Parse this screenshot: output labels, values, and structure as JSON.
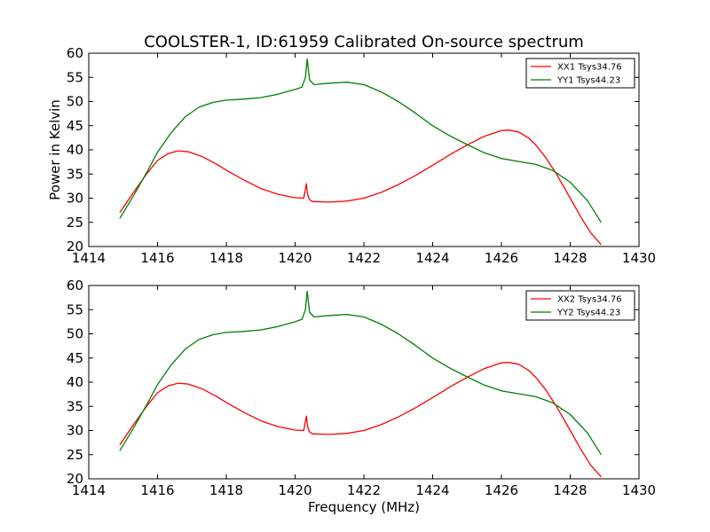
{
  "title": "COOLSTER-1, ID:61959 Calibrated On-source spectrum",
  "colors": {
    "xx": "#ff0000",
    "yy": "#008000"
  },
  "chart_data": [
    {
      "type": "line",
      "title": "COOLSTER-1, ID:61959 Calibrated On-source spectrum",
      "xlabel": "",
      "ylabel": "Power in Kelvin",
      "xlim": [
        1414,
        1430
      ],
      "ylim": [
        20,
        60
      ],
      "xticks": [
        1414,
        1416,
        1418,
        1420,
        1422,
        1424,
        1426,
        1428,
        1430
      ],
      "yticks": [
        20,
        25,
        30,
        35,
        40,
        45,
        50,
        55,
        60
      ],
      "legend_position": "top-right",
      "series": [
        {
          "name": "XX1 Tsys34.76",
          "color": "#ff0000",
          "x": [
            1414.9,
            1415.3,
            1415.7,
            1416.0,
            1416.3,
            1416.6,
            1416.9,
            1417.3,
            1417.7,
            1418.0,
            1418.5,
            1419.0,
            1419.5,
            1420.0,
            1420.25,
            1420.33,
            1420.36,
            1420.41,
            1420.5,
            1421.0,
            1421.5,
            1422.0,
            1422.5,
            1423.0,
            1423.5,
            1424.0,
            1424.5,
            1425.0,
            1425.5,
            1426.0,
            1426.2,
            1426.5,
            1426.8,
            1427.0,
            1427.3,
            1427.6,
            1428.0,
            1428.3,
            1428.6,
            1428.9
          ],
          "y": [
            27.0,
            31.2,
            35.2,
            37.8,
            39.2,
            39.8,
            39.6,
            38.6,
            37.1,
            35.8,
            33.8,
            32.0,
            30.8,
            30.1,
            30.0,
            33.0,
            31.0,
            29.8,
            29.3,
            29.2,
            29.4,
            30.0,
            31.2,
            32.8,
            34.7,
            36.8,
            39.0,
            41.0,
            42.8,
            44.0,
            44.1,
            43.7,
            42.4,
            41.0,
            38.3,
            35.0,
            30.0,
            26.2,
            22.8,
            20.4
          ]
        },
        {
          "name": "YY1 Tsys44.23",
          "color": "#008000",
          "x": [
            1414.9,
            1415.3,
            1415.7,
            1416.0,
            1416.4,
            1416.8,
            1417.2,
            1417.6,
            1418.0,
            1418.5,
            1419.0,
            1419.5,
            1420.0,
            1420.2,
            1420.3,
            1420.35,
            1420.42,
            1420.55,
            1421.0,
            1421.5,
            1422.0,
            1422.5,
            1423.0,
            1423.5,
            1424.0,
            1424.5,
            1425.0,
            1425.5,
            1426.0,
            1426.5,
            1427.0,
            1427.5,
            1428.0,
            1428.5,
            1428.9
          ],
          "y": [
            25.8,
            30.5,
            35.5,
            39.5,
            43.6,
            46.8,
            48.8,
            49.8,
            50.3,
            50.5,
            50.8,
            51.5,
            52.5,
            53.0,
            55.0,
            58.8,
            54.5,
            53.5,
            53.8,
            54.0,
            53.5,
            52.0,
            50.0,
            47.6,
            45.0,
            42.9,
            41.1,
            39.4,
            38.2,
            37.6,
            37.0,
            35.7,
            33.3,
            29.5,
            25.0
          ]
        }
      ]
    },
    {
      "type": "line",
      "title": "",
      "xlabel": "Frequency (MHz)",
      "ylabel": "",
      "xlim": [
        1414,
        1430
      ],
      "ylim": [
        20,
        60
      ],
      "xticks": [
        1414,
        1416,
        1418,
        1420,
        1422,
        1424,
        1426,
        1428,
        1430
      ],
      "yticks": [
        20,
        25,
        30,
        35,
        40,
        45,
        50,
        55,
        60
      ],
      "legend_position": "top-right",
      "series": [
        {
          "name": "XX2 Tsys34.76",
          "color": "#ff0000",
          "x": [
            1414.9,
            1415.3,
            1415.7,
            1416.0,
            1416.3,
            1416.6,
            1416.9,
            1417.3,
            1417.7,
            1418.0,
            1418.5,
            1419.0,
            1419.5,
            1420.0,
            1420.25,
            1420.33,
            1420.36,
            1420.41,
            1420.5,
            1421.0,
            1421.5,
            1422.0,
            1422.5,
            1423.0,
            1423.5,
            1424.0,
            1424.5,
            1425.0,
            1425.5,
            1426.0,
            1426.2,
            1426.5,
            1426.8,
            1427.0,
            1427.3,
            1427.6,
            1428.0,
            1428.3,
            1428.6,
            1428.9
          ],
          "y": [
            27.0,
            31.2,
            35.2,
            37.8,
            39.2,
            39.8,
            39.6,
            38.6,
            37.1,
            35.8,
            33.8,
            32.0,
            30.8,
            30.1,
            30.0,
            33.0,
            31.0,
            29.8,
            29.3,
            29.2,
            29.4,
            30.0,
            31.2,
            32.8,
            34.7,
            36.8,
            39.0,
            41.0,
            42.8,
            44.0,
            44.1,
            43.7,
            42.4,
            41.0,
            38.3,
            35.0,
            30.0,
            26.2,
            22.8,
            20.4
          ]
        },
        {
          "name": "YY2 Tsys44.23",
          "color": "#008000",
          "x": [
            1414.9,
            1415.3,
            1415.7,
            1416.0,
            1416.4,
            1416.8,
            1417.2,
            1417.6,
            1418.0,
            1418.5,
            1419.0,
            1419.5,
            1420.0,
            1420.2,
            1420.3,
            1420.35,
            1420.42,
            1420.55,
            1421.0,
            1421.5,
            1422.0,
            1422.5,
            1423.0,
            1423.5,
            1424.0,
            1424.5,
            1425.0,
            1425.5,
            1426.0,
            1426.5,
            1427.0,
            1427.5,
            1428.0,
            1428.5,
            1428.9
          ],
          "y": [
            25.8,
            30.5,
            35.5,
            39.5,
            43.6,
            46.8,
            48.8,
            49.8,
            50.3,
            50.5,
            50.8,
            51.5,
            52.5,
            53.0,
            55.0,
            58.8,
            54.5,
            53.5,
            53.8,
            54.0,
            53.5,
            52.0,
            50.0,
            47.6,
            45.0,
            42.9,
            41.1,
            39.4,
            38.2,
            37.6,
            37.0,
            35.7,
            33.3,
            29.5,
            25.0
          ]
        }
      ]
    }
  ]
}
